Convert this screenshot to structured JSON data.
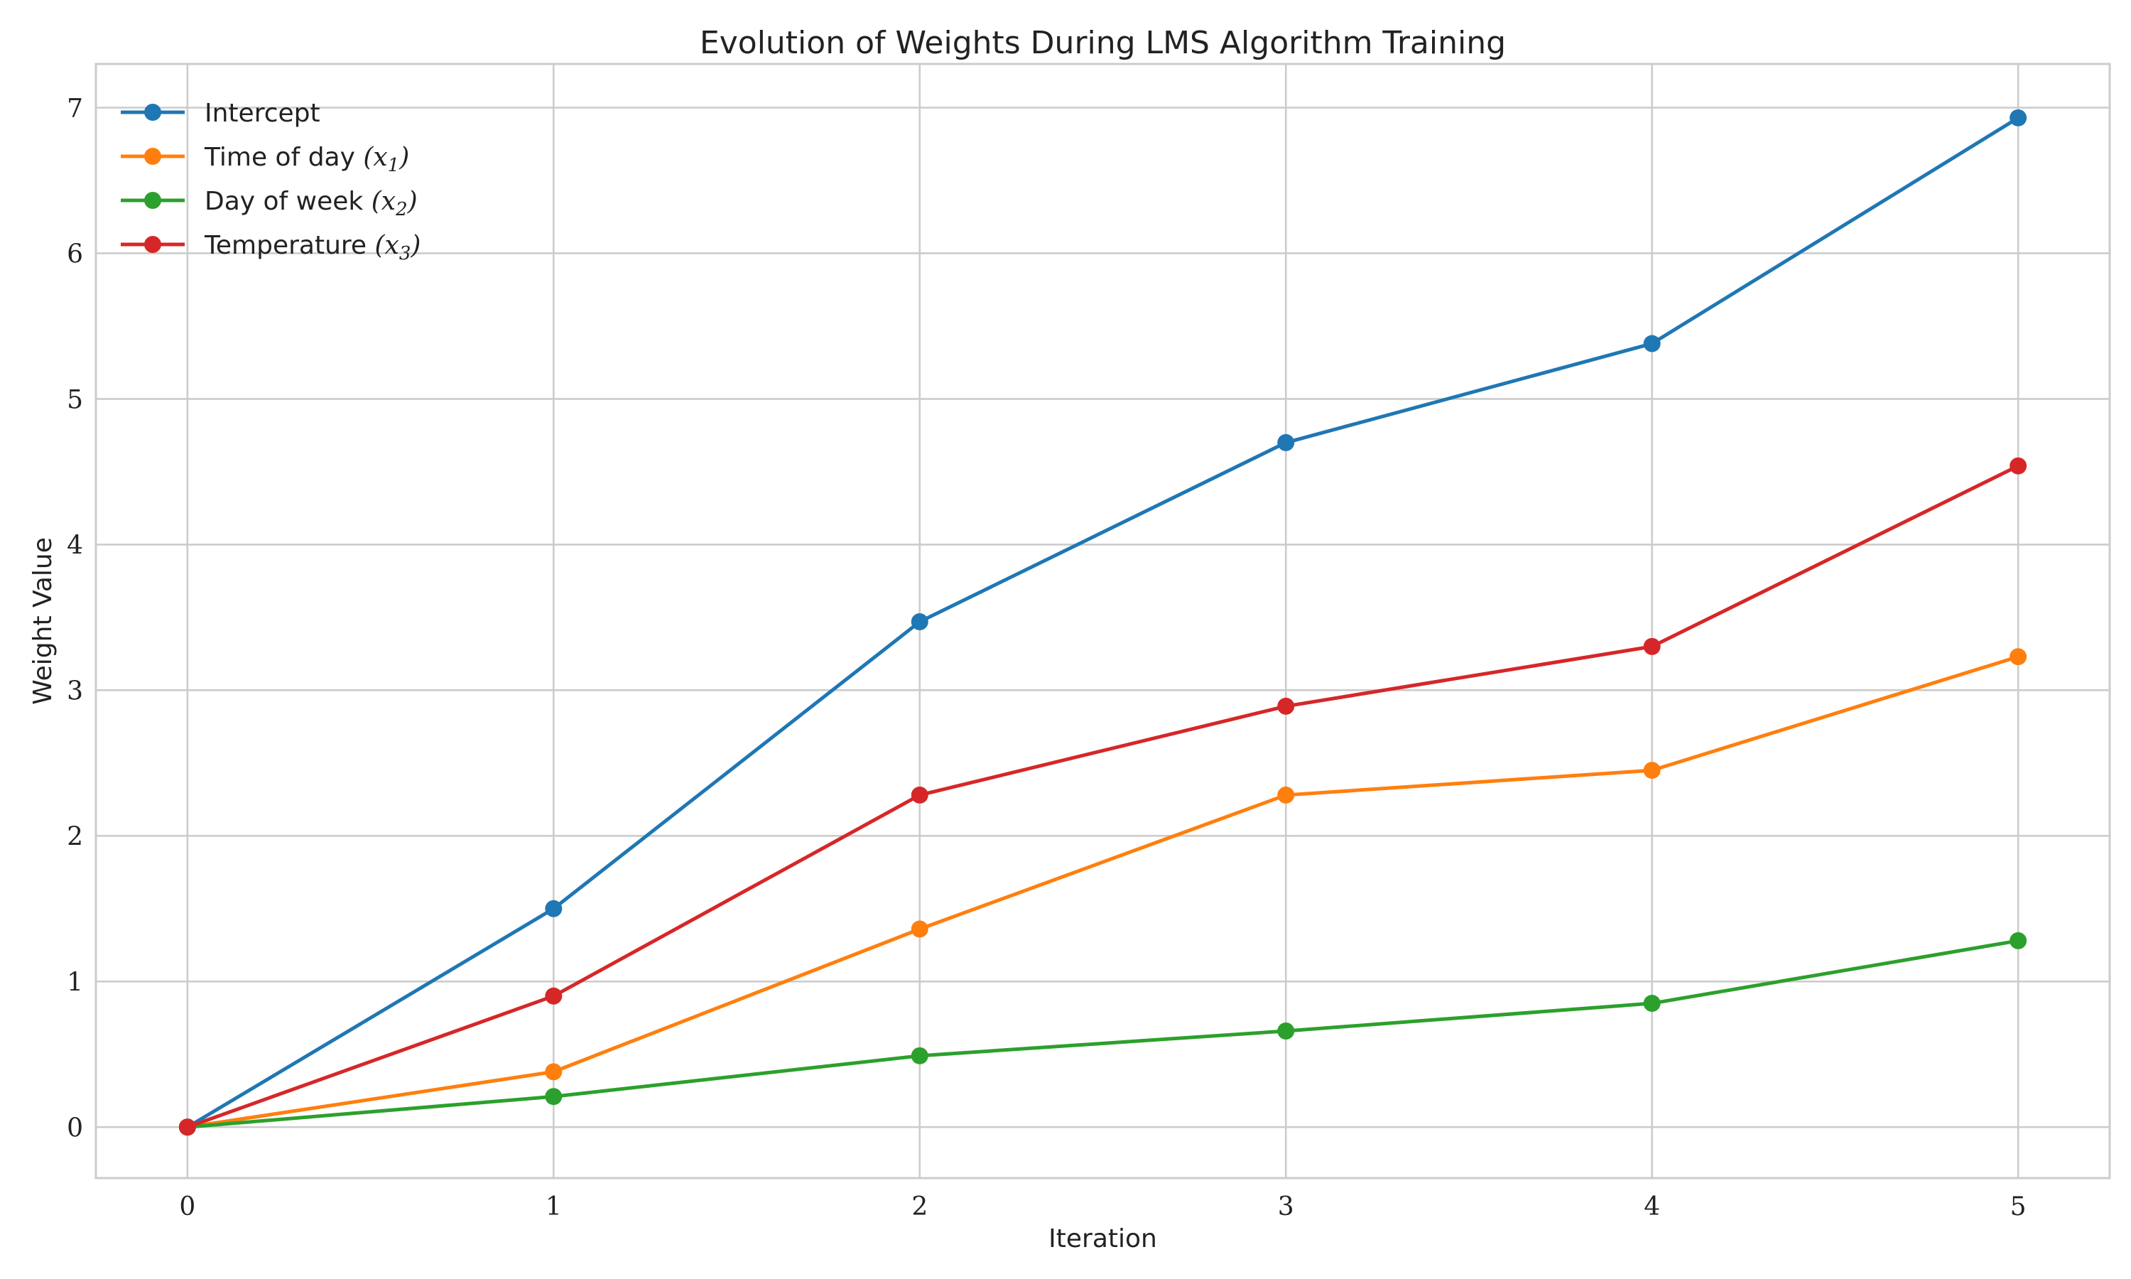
{
  "chart_data": {
    "type": "line",
    "title": "Evolution of Weights During LMS Algorithm Training",
    "xlabel": "Iteration",
    "ylabel": "Weight Value",
    "x": [
      0,
      1,
      2,
      3,
      4,
      5
    ],
    "x_ticks": [
      "0",
      "1",
      "2",
      "3",
      "4",
      "5"
    ],
    "y_ticks": [
      "0",
      "1",
      "2",
      "3",
      "4",
      "5",
      "6",
      "7"
    ],
    "xlim": [
      -0.25,
      5.25
    ],
    "ylim": [
      -0.35,
      7.3
    ],
    "grid": true,
    "legend_position": "upper left",
    "series": [
      {
        "name": "Intercept",
        "name_text": "Intercept",
        "name_math": "",
        "color": "#1f77b4",
        "values": [
          0.0,
          1.5,
          3.47,
          4.7,
          5.38,
          6.93
        ]
      },
      {
        "name": "Time of day (x1)",
        "name_text": "Time of day ",
        "name_math": "(x1)",
        "color": "#ff7f0e",
        "values": [
          0.0,
          0.38,
          1.36,
          2.28,
          2.45,
          3.23
        ]
      },
      {
        "name": "Day of week (x2)",
        "name_text": "Day of week ",
        "name_math": "(x2)",
        "color": "#2ca02c",
        "values": [
          0.0,
          0.21,
          0.49,
          0.66,
          0.85,
          1.28
        ]
      },
      {
        "name": "Temperature (x3)",
        "name_text": "Temperature ",
        "name_math": "(x3)",
        "color": "#d62728",
        "values": [
          0.0,
          0.9,
          2.28,
          2.89,
          3.3,
          4.54
        ]
      }
    ]
  }
}
